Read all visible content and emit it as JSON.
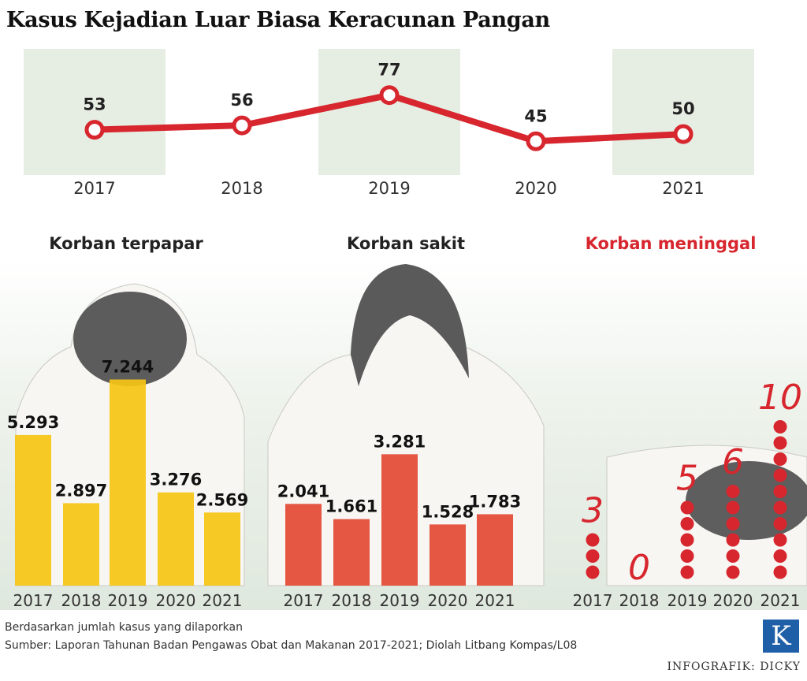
{
  "title": "Kasus Kejadian Luar Biasa Keracunan Pangan",
  "chart_data": [
    {
      "type": "line",
      "title": "Kasus Kejadian Luar Biasa Keracunan Pangan",
      "categories": [
        "2017",
        "2018",
        "2019",
        "2020",
        "2021"
      ],
      "values": [
        53,
        56,
        77,
        45,
        50
      ],
      "value_labels": [
        "53",
        "56",
        "77",
        "45",
        "50"
      ],
      "color": "#d7262e"
    },
    {
      "type": "bar",
      "title": "Korban terpapar",
      "categories": [
        "2017",
        "2018",
        "2019",
        "2020",
        "2021"
      ],
      "values": [
        5293,
        2897,
        7244,
        3276,
        2569
      ],
      "value_labels": [
        "5.293",
        "2.897",
        "7.244",
        "3.276",
        "2.569"
      ],
      "color": "#f6c515"
    },
    {
      "type": "bar",
      "title": "Korban sakit",
      "categories": [
        "2017",
        "2018",
        "2019",
        "2020",
        "2021"
      ],
      "values": [
        2041,
        1661,
        3281,
        1528,
        1783
      ],
      "value_labels": [
        "2.041",
        "1.661",
        "3.281",
        "1.528",
        "1.783"
      ],
      "color": "#e34a36"
    },
    {
      "type": "scatter",
      "title": "Korban meninggal",
      "categories": [
        "2017",
        "2018",
        "2019",
        "2020",
        "2021"
      ],
      "values": [
        3,
        0,
        5,
        6,
        10
      ],
      "value_labels": [
        "3",
        "0",
        "5",
        "6",
        "10"
      ],
      "color": "#d7262e"
    }
  ],
  "footer": {
    "note": "Berdasarkan jumlah kasus yang dilaporkan",
    "source": "Sumber: Laporan Tahunan Badan Pengawas Obat dan Makanan 2017-2021; Diolah Litbang Kompas/L08",
    "credit": "INFOGRAFIK: DICKY",
    "logo": "K"
  }
}
